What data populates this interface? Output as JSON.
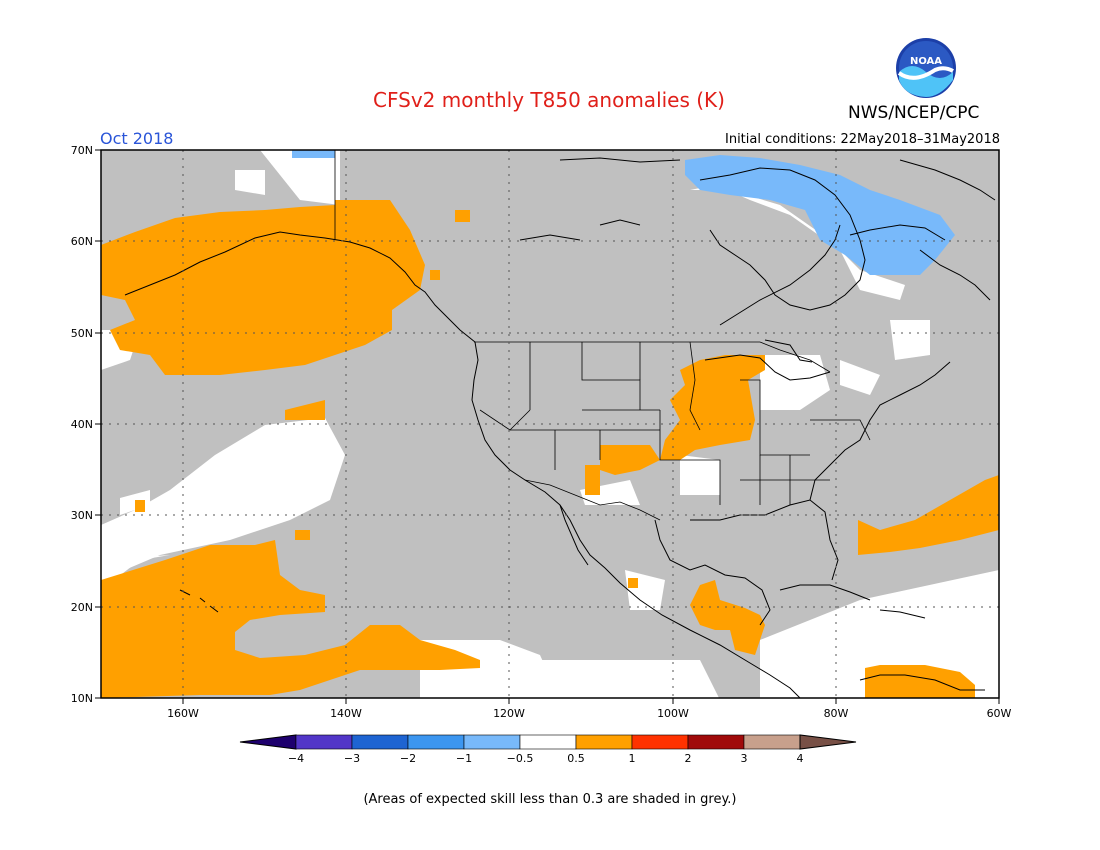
{
  "header": {
    "title": "CFSv2 monthly T850 anomalies (K)",
    "agency": "NWS/NCEP/CPC",
    "logo_text": "NOAA",
    "month": "Oct 2018",
    "init_conditions": "Initial conditions: 22May2018–31May2018"
  },
  "axes": {
    "lat_labels": [
      "70N",
      "60N",
      "50N",
      "40N",
      "30N",
      "20N",
      "10N"
    ],
    "lon_labels": [
      "160W",
      "140W",
      "120W",
      "100W",
      "80W",
      "60W"
    ],
    "lon_range": [
      -170,
      -60
    ],
    "lat_range": [
      10,
      70
    ]
  },
  "colorbar": {
    "tick_labels": [
      "−4",
      "−3",
      "−2",
      "−1",
      "−0.5",
      "0.5",
      "1",
      "2",
      "3",
      "4"
    ],
    "colors": {
      "below_min": "#1e006e",
      "c1": "#5236c8",
      "c2": "#1e64d2",
      "c3": "#3c96f0",
      "c4": "#78b9fa",
      "neutral": "#ffffff",
      "w1": "#ffa000",
      "w2": "#ff3200",
      "w3": "#a00a0a",
      "w4": "#c8a08c",
      "above_max": "#785046"
    }
  },
  "legend_colors": {
    "grey_low_skill": "#c0c0c0",
    "warm_anomaly": "#ffa000",
    "cool_anomaly": "#78b9fa"
  },
  "footnote": "(Areas of expected skill less than 0.3 are shaded in grey.)"
}
